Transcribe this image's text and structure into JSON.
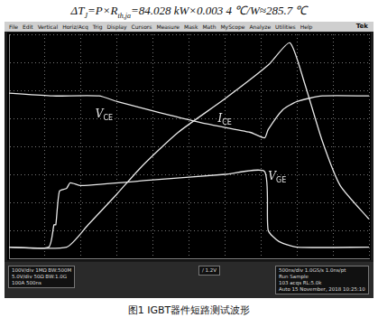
{
  "formula": [
    {
      "text": "ΔT",
      "sub": "J"
    },
    {
      "text": "=P×R",
      "sub": "th,ja"
    },
    {
      "text": "=84.028 kW×0.003 4 ℃/W≈285.7 ℃"
    }
  ],
  "scope": {
    "menu": [
      "File",
      "Edit",
      "Vertical",
      "Horiz/Acq",
      "Trig",
      "Display",
      "Cursors",
      "Measure",
      "Mask",
      "Math",
      "MyScope",
      "Analyze",
      "Utilities",
      "Help"
    ],
    "brand": "Tek",
    "channels": [
      [
        "100V/div",
        "1MΩ",
        "BW:500M"
      ],
      [
        "5.0V/div",
        "50Ω",
        "BW:1.0G"
      ],
      [
        "100A",
        "500ns"
      ]
    ],
    "trigger": "/ 1.2V",
    "acquisition": [
      [
        "500ns/div",
        "1.0GS/s",
        "1.0ns/pt"
      ],
      [
        "Run",
        "Sample"
      ],
      [
        "103 acqs",
        "RL:5.0k"
      ],
      [
        "Auto",
        "15 November, 2018",
        "10:25:10"
      ]
    ]
  },
  "chart_data": {
    "type": "line",
    "xlim": [
      0,
      10
    ],
    "xticks": [
      0,
      1,
      2,
      3,
      4,
      5,
      6,
      7,
      8,
      9,
      10
    ],
    "ylim": [
      -4,
      4
    ],
    "yticks": [
      -4,
      -3,
      -2,
      -1,
      0,
      1,
      2,
      3,
      4
    ],
    "grid": true,
    "tick_labels": false,
    "series": [
      {
        "name": "VCE",
        "color": "#e8e8e8",
        "x": [
          0,
          1.2,
          2.5,
          3.0,
          4.2,
          5.5,
          6.7,
          7.1,
          7.2,
          7.6,
          8.0,
          8.7,
          10
        ],
        "values": [
          1.9,
          1.8,
          1.8,
          1.6,
          1.2,
          0.8,
          0.5,
          0.3,
          0.6,
          1.3,
          1.6,
          1.8,
          1.8
        ]
      },
      {
        "name": "ICE",
        "color": "#e8e8e8",
        "x": [
          0,
          1.6,
          2.2,
          3.0,
          3.7,
          4.7,
          6.0,
          7.2,
          7.8,
          8.2,
          8.7,
          9.2,
          10
        ],
        "values": [
          -3.6,
          -3.6,
          -2.8,
          -1.7,
          -0.7,
          0.5,
          1.7,
          2.9,
          3.7,
          2.3,
          0.2,
          -1.4,
          -2.6
        ]
      },
      {
        "name": "VGE",
        "color": "#e8e8e8",
        "x": [
          0,
          1.1,
          1.25,
          1.3,
          1.4,
          1.6,
          1.7,
          2.0,
          4.0,
          6.0,
          7.1,
          7.2,
          7.5,
          8.0,
          10
        ],
        "values": [
          -3.6,
          -3.6,
          -2.8,
          -2.8,
          -1.6,
          -1.5,
          -1.3,
          -1.4,
          -1.2,
          -1.0,
          -0.9,
          -3.0,
          -3.4,
          -3.6,
          -3.6
        ]
      }
    ]
  },
  "caption": "图1 IGBT器件短路测试波形"
}
